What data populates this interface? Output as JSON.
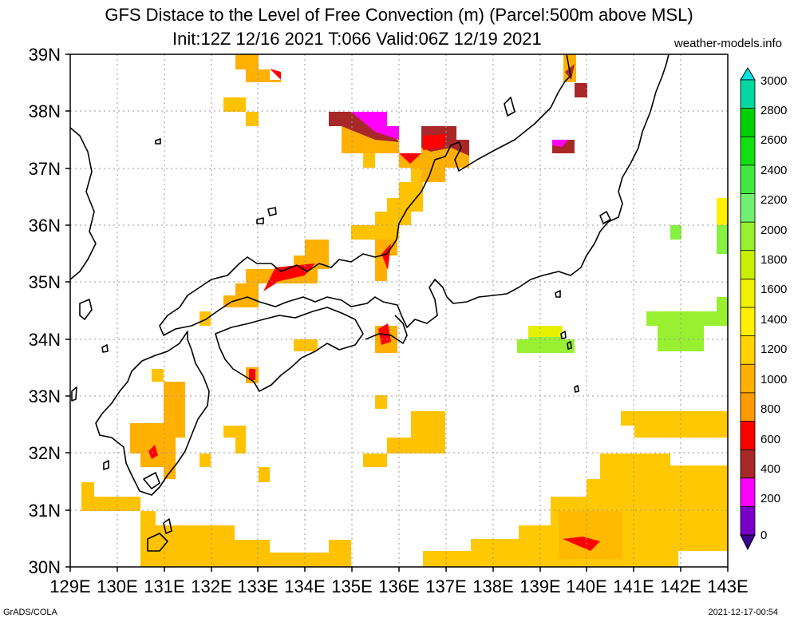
{
  "header": {
    "title": "GFS Distace to the Level of Free Convection (m) (Parcel:500m above MSL)",
    "subtitle": "Init:12Z 12/16 2021 T:066 Valid:06Z 12/19 2021",
    "credit": "weather-models.info"
  },
  "footer": {
    "left": "GrADS/COLA",
    "right": "2021-12-17-00:54"
  },
  "map": {
    "lat_labels": [
      "39N",
      "38N",
      "37N",
      "36N",
      "35N",
      "34N",
      "33N",
      "32N",
      "31N",
      "30N"
    ],
    "lon_labels": [
      "129E",
      "130E",
      "131E",
      "132E",
      "133E",
      "134E",
      "135E",
      "136E",
      "137E",
      "138E",
      "139E",
      "140E",
      "141E",
      "142E",
      "143E"
    ],
    "coastline_color": "#000000",
    "grid": "dotted"
  },
  "colorbar": {
    "labels": [
      "3000",
      "2800",
      "2600",
      "2400",
      "2200",
      "2000",
      "1800",
      "1600",
      "1400",
      "1200",
      "1000",
      "800",
      "600",
      "400",
      "200",
      "0"
    ],
    "colors": [
      "#00e5e5",
      "#00d8a0",
      "#00d000",
      "#10e010",
      "#40e840",
      "#70f070",
      "#98f030",
      "#c8f000",
      "#f0f000",
      "#fff000",
      "#ffd200",
      "#ffb000",
      "#ff9a00",
      "#ff0000",
      "#a82828",
      "#ff00ff",
      "#7a00c8",
      "#3c0090"
    ]
  }
}
